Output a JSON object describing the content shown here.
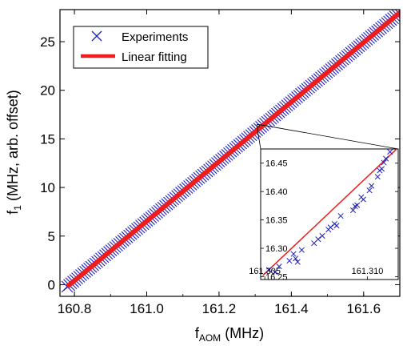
{
  "chart_data": [
    {
      "name": "main",
      "type": "scatter",
      "xlabel": {
        "base": "f",
        "sub": "AOM",
        "rest": " (MHz)"
      },
      "ylabel": {
        "base": "f",
        "sub": "1",
        "rest": " (MHz, arb. offset)"
      },
      "xlim": [
        160.76,
        161.7
      ],
      "ylim": [
        -1.2,
        28.3
      ],
      "xticks": [
        160.8,
        161.0,
        161.2,
        161.4,
        161.6
      ],
      "xtick_labels": [
        "160.8",
        "161.0",
        "161.2",
        "161.4",
        "161.6"
      ],
      "yticks": [
        0,
        5,
        10,
        15,
        20,
        25
      ],
      "ytick_labels": [
        "0",
        "5",
        "10",
        "15",
        "20",
        "25"
      ],
      "legend": {
        "placement": "top-left",
        "entries": [
          {
            "label": "Experiments",
            "marker": "x",
            "color": "#1f1fbf"
          },
          {
            "label": "Linear fitting",
            "marker": "line",
            "color": "#ee1c1c"
          }
        ]
      },
      "series": [
        {
          "name": "Experiments",
          "kind": "dense-markers",
          "x_range": [
            160.78,
            161.72
          ],
          "y_range": [
            -0.2,
            28.6
          ],
          "color": "#1f1fbf"
        },
        {
          "name": "Linear fitting",
          "kind": "line",
          "x": [
            160.78,
            161.72
          ],
          "y": [
            -0.2,
            28.6
          ],
          "color": "#ee1c1c"
        }
      ],
      "zoom_box": {
        "x": [
          161.305,
          161.311
        ],
        "y": [
          16.25,
          16.47
        ]
      }
    },
    {
      "name": "inset",
      "type": "scatter",
      "xlim": [
        161.3048,
        161.3115
      ],
      "ylim": [
        16.245,
        16.475
      ],
      "xticks": [
        161.305,
        161.31
      ],
      "xtick_labels": [
        "161.305",
        "161.310"
      ],
      "yticks": [
        16.25,
        16.3,
        16.35,
        16.4,
        16.45
      ],
      "ytick_labels": [
        "16.25",
        "16.30",
        "16.35",
        "16.40",
        "16.45"
      ],
      "series": [
        {
          "name": "Experiments",
          "color": "#1f1fbf",
          "x": [
            161.3052,
            161.3055,
            161.3057,
            161.3062,
            161.3064,
            161.3065,
            161.3066,
            161.3068,
            161.3074,
            161.3076,
            161.3078,
            161.3081,
            161.3082,
            161.3084,
            161.3085,
            161.3087,
            161.3093,
            161.3094,
            161.3095,
            161.3097,
            161.3098,
            161.3101,
            161.3102,
            161.3105,
            161.3106,
            161.3107,
            161.3108,
            161.3109,
            161.3111
          ],
          "y": [
            16.262,
            16.258,
            16.268,
            16.278,
            16.29,
            16.282,
            16.276,
            16.297,
            16.309,
            16.316,
            16.322,
            16.333,
            16.337,
            16.343,
            16.34,
            16.357,
            16.367,
            16.374,
            16.376,
            16.39,
            16.386,
            16.402,
            16.41,
            16.426,
            16.437,
            16.44,
            16.451,
            16.458,
            16.47
          ]
        },
        {
          "name": "Linear fitting",
          "kind": "line",
          "x": [
            161.3049,
            161.3114
          ],
          "y": [
            16.252,
            16.474
          ],
          "color": "#ee1c1c"
        }
      ]
    }
  ]
}
